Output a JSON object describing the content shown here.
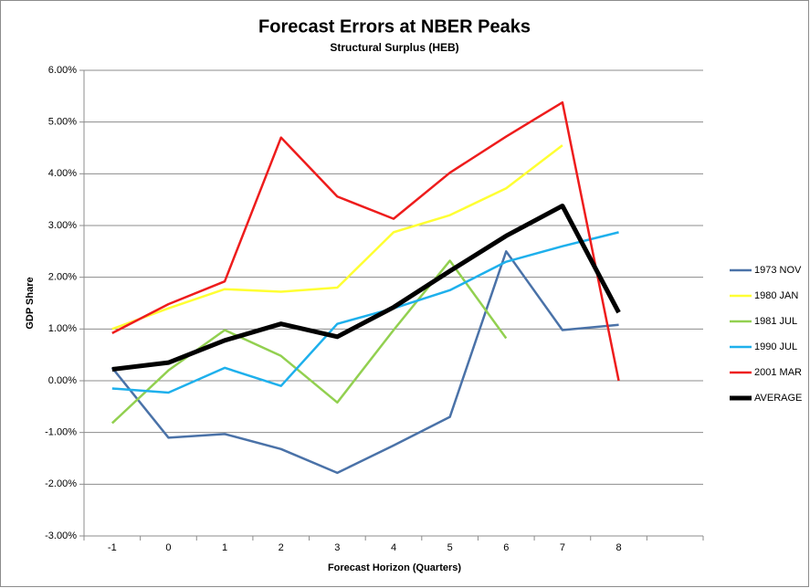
{
  "chart_data": {
    "type": "line",
    "title": "Forecast Errors at NBER Peaks",
    "subtitle": "Structural Surplus (HEB)",
    "x_label": "Forecast Horizon (Quarters)",
    "y_label": "GDP Share",
    "categories": [
      "-1",
      "0",
      "1",
      "2",
      "3",
      "4",
      "5",
      "6",
      "7",
      "8",
      null
    ],
    "ylim": [
      -3,
      6
    ],
    "yticks": [
      {
        "value": -3,
        "label": "-3.00%"
      },
      {
        "value": -2,
        "label": "-2.00%"
      },
      {
        "value": -1,
        "label": "-1.00%"
      },
      {
        "value": 0,
        "label": "0.00%"
      },
      {
        "value": 1,
        "label": "1.00%"
      },
      {
        "value": 2,
        "label": "2.00%"
      },
      {
        "value": 3,
        "label": "3.00%"
      },
      {
        "value": 4,
        "label": "4.00%"
      },
      {
        "value": 5,
        "label": "5.00%"
      },
      {
        "value": 6,
        "label": "6.00%"
      }
    ],
    "grid": true,
    "legend": "right",
    "series": [
      {
        "name": "1973 NOV",
        "color": "#4a72a8",
        "width": 2.5,
        "values": [
          0.25,
          -1.1,
          -1.03,
          -1.32,
          -1.78,
          -1.25,
          -0.7,
          2.5,
          0.98,
          1.08,
          null
        ]
      },
      {
        "name": "1980 JAN",
        "color": "#ffff33",
        "width": 2.5,
        "values": [
          1.0,
          1.4,
          1.77,
          1.72,
          1.8,
          2.87,
          3.2,
          3.72,
          4.55,
          null,
          null
        ]
      },
      {
        "name": "1981 JUL",
        "color": "#92d050",
        "width": 2.5,
        "values": [
          -0.82,
          0.2,
          0.98,
          0.48,
          -0.42,
          0.98,
          2.32,
          0.82,
          null,
          null,
          null
        ]
      },
      {
        "name": "1990 JUL",
        "color": "#1eb0ec",
        "width": 2.5,
        "values": [
          -0.15,
          -0.23,
          0.25,
          -0.1,
          1.1,
          1.4,
          1.75,
          2.3,
          2.6,
          2.87,
          null
        ]
      },
      {
        "name": "2001 MAR",
        "color": "#ee1c1c",
        "width": 2.5,
        "values": [
          0.92,
          1.48,
          1.92,
          4.7,
          3.56,
          3.13,
          4.02,
          4.72,
          5.38,
          0.0,
          null
        ]
      },
      {
        "name": "AVERAGE",
        "color": "#000000",
        "width": 5,
        "values": [
          0.22,
          0.35,
          0.78,
          1.1,
          0.85,
          1.42,
          2.12,
          2.8,
          3.38,
          1.32,
          null
        ]
      }
    ]
  }
}
